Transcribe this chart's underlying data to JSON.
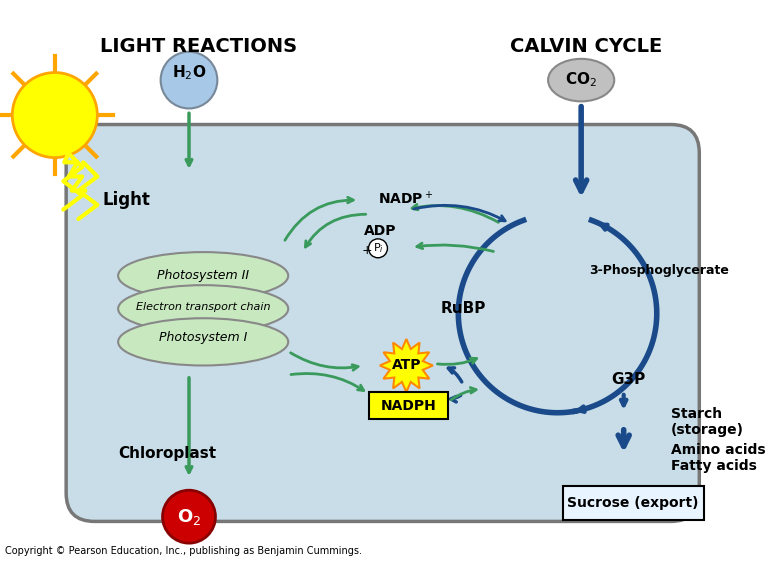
{
  "title_left": "LIGHT REACTIONS",
  "title_right": "CALVIN CYCLE",
  "bg_color": "#ffffff",
  "chloroplast_fill": "#c8dde8",
  "chloroplast_edge": "#888888",
  "thylakoid_fill": "#c8e8c0",
  "thylakoid_edge": "#888888",
  "sun_yellow": "#ffff00",
  "sun_orange": "#ffa500",
  "h2o_fill": "#a8c8e8",
  "co2_fill": "#c0c0c0",
  "o2_fill": "#cc0000",
  "o2_text": "#ffffff",
  "atp_fill": "#ffff00",
  "atp_edge": "#ff8800",
  "nadph_fill": "#ffff00",
  "nadph_edge": "#000000",
  "green_arrow": "#3a9a5c",
  "blue_arrow": "#1a4a8a",
  "copyright": "Copyright © Pearson Education, Inc., publishing as Benjamin Cummings."
}
